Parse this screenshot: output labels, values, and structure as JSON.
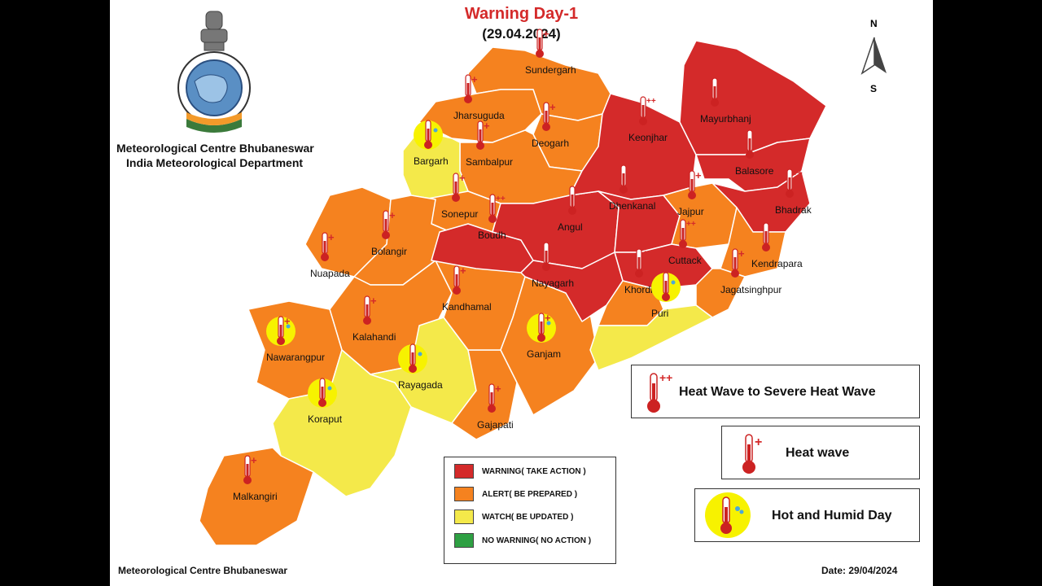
{
  "title": "Warning Day-1",
  "date_heading": "(29.04.2024)",
  "organization": {
    "line1": "Meteorological Centre Bhubaneswar",
    "line2": "India Meteorological Department",
    "logo_icon": "imd-emblem-logo"
  },
  "compass": {
    "north": "N",
    "south": "S"
  },
  "footer": {
    "left": "Meteorological Centre Bhubaneswar",
    "right": "Date: 29/04/2024"
  },
  "warning_legend": [
    {
      "label": "WARNING( TAKE ACTION )",
      "color": "#d42a2a"
    },
    {
      "label": "ALERT( BE PREPARED )",
      "color": "#f5821f"
    },
    {
      "label": "WATCH( BE UPDATED )",
      "color": "#f4e94a"
    },
    {
      "label": "NO WARNING( NO ACTION )",
      "color": "#2ea043"
    }
  ],
  "hazard_legend": [
    {
      "label": "Heat Wave to Severe Heat Wave",
      "icon": "thermometer-double-plus-icon"
    },
    {
      "label": "Heat wave",
      "icon": "thermometer-plus-icon"
    },
    {
      "label": "Hot and Humid Day",
      "icon": "thermometer-humid-icon"
    }
  ],
  "colors": {
    "warning": "#d42a2a",
    "alert": "#f5821f",
    "watch": "#f4e94a",
    "no_warning": "#2ea043"
  },
  "districts": [
    {
      "name": "Sundergarh",
      "level": "alert",
      "hazard": "heat_wave"
    },
    {
      "name": "Jharsuguda",
      "level": "alert",
      "hazard": "heat_wave"
    },
    {
      "name": "Deogarh",
      "level": "alert",
      "hazard": "heat_wave"
    },
    {
      "name": "Sambalpur",
      "level": "alert",
      "hazard": "heat_wave"
    },
    {
      "name": "Bargarh",
      "level": "watch",
      "hazard": "hot_humid"
    },
    {
      "name": "Sonepur",
      "level": "alert",
      "hazard": "heat_wave"
    },
    {
      "name": "Bolangir",
      "level": "alert",
      "hazard": "heat_wave"
    },
    {
      "name": "Nuapada",
      "level": "alert",
      "hazard": "heat_wave"
    },
    {
      "name": "Kalahandi",
      "level": "alert",
      "hazard": "heat_wave"
    },
    {
      "name": "Nawarangpur",
      "level": "alert",
      "hazard": "heat_wave_and_hot_humid"
    },
    {
      "name": "Koraput",
      "level": "watch",
      "hazard": "hot_humid"
    },
    {
      "name": "Malkangiri",
      "level": "alert",
      "hazard": "heat_wave"
    },
    {
      "name": "Rayagada",
      "level": "watch",
      "hazard": "hot_humid"
    },
    {
      "name": "Gajapati",
      "level": "alert",
      "hazard": "heat_wave"
    },
    {
      "name": "Ganjam",
      "level": "alert",
      "hazard": "heat_wave_and_hot_humid"
    },
    {
      "name": "Kandhamal",
      "level": "alert",
      "hazard": "heat_wave"
    },
    {
      "name": "Boudh",
      "level": "warning",
      "hazard": "severe_heat_wave"
    },
    {
      "name": "Angul",
      "level": "warning",
      "hazard": "severe_heat_wave"
    },
    {
      "name": "Dhenkanal",
      "level": "warning",
      "hazard": "severe_heat_wave"
    },
    {
      "name": "Keonjhar",
      "level": "warning",
      "hazard": "severe_heat_wave"
    },
    {
      "name": "Mayurbhanj",
      "level": "warning",
      "hazard": "severe_heat_wave"
    },
    {
      "name": "Balasore",
      "level": "warning",
      "hazard": "severe_heat_wave"
    },
    {
      "name": "Bhadrak",
      "level": "warning",
      "hazard": "severe_heat_wave"
    },
    {
      "name": "Jajpur",
      "level": "alert",
      "hazard": "heat_wave"
    },
    {
      "name": "Cuttack",
      "level": "warning",
      "hazard": "severe_heat_wave"
    },
    {
      "name": "Kendrapara",
      "level": "alert",
      "hazard": "heat_wave"
    },
    {
      "name": "Jagatsinghpur",
      "level": "alert",
      "hazard": "heat_wave"
    },
    {
      "name": "Khordha",
      "level": "alert",
      "hazard": "heat_wave"
    },
    {
      "name": "Nayagarh",
      "level": "warning",
      "hazard": "severe_heat_wave"
    },
    {
      "name": "Puri",
      "level": "watch",
      "hazard": "hot_humid"
    }
  ]
}
